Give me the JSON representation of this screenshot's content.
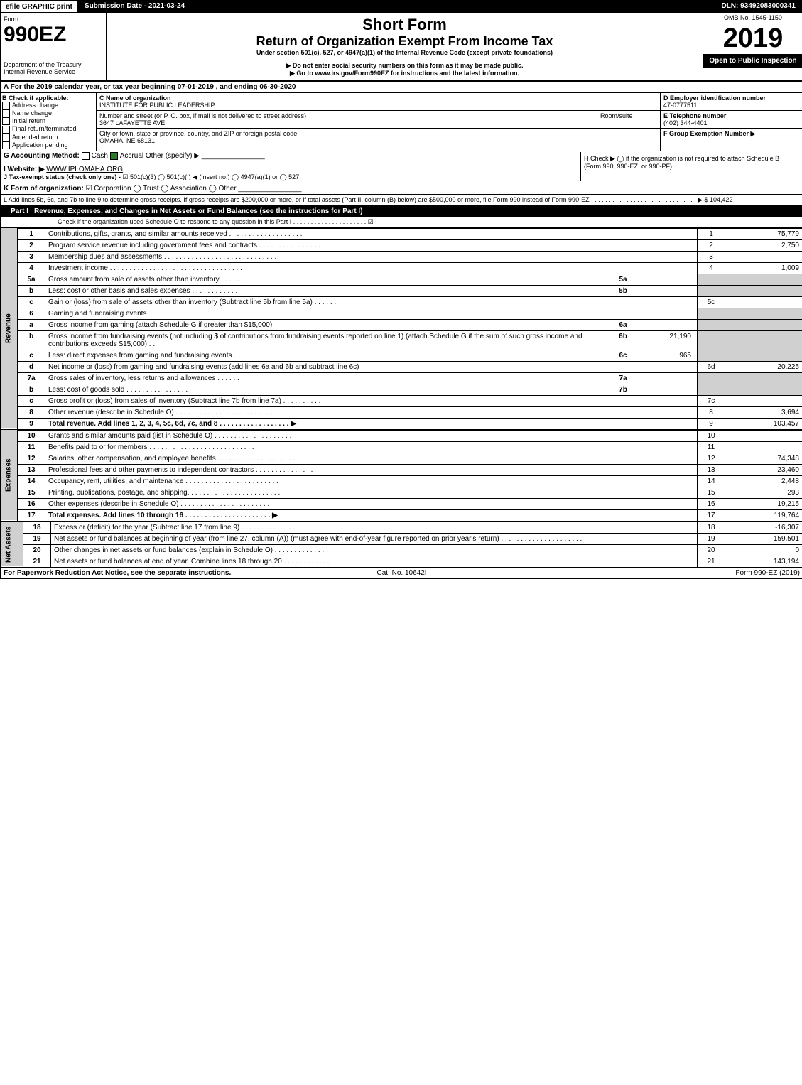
{
  "topbar": {
    "efile": "efile GRAPHIC print",
    "submission": "Submission Date - 2021-03-24",
    "dln": "DLN: 93492083000341"
  },
  "header": {
    "form_word": "Form",
    "form_number": "990EZ",
    "dept": "Department of the Treasury",
    "irs": "Internal Revenue Service",
    "short_form": "Short Form",
    "return_title": "Return of Organization Exempt From Income Tax",
    "under": "Under section 501(c), 527, or 4947(a)(1) of the Internal Revenue Code (except private foundations)",
    "warn": "▶ Do not enter social security numbers on this form as it may be made public.",
    "goto": "▶ Go to www.irs.gov/Form990EZ for instructions and the latest information.",
    "omb": "OMB No. 1545-1150",
    "year": "2019",
    "open": "Open to Public Inspection"
  },
  "sectionA": {
    "a_line": "A For the 2019 calendar year, or tax year beginning 07-01-2019 , and ending 06-30-2020",
    "b_title": "B Check if applicable:",
    "b_opts": [
      "Address change",
      "Name change",
      "Initial return",
      "Final return/terminated",
      "Amended return",
      "Application pending"
    ],
    "c_label": "C Name of organization",
    "c_value": "INSTITUTE FOR PUBLIC LEADERSHIP",
    "addr_label": "Number and street (or P. O. box, if mail is not delivered to street address)",
    "addr_value": "3647 LAFAYETTE AVE",
    "room_label": "Room/suite",
    "city_label": "City or town, state or province, country, and ZIP or foreign postal code",
    "city_value": "OMAHA, NE  68131",
    "d_label": "D Employer identification number",
    "d_value": "47-0777511",
    "e_label": "E Telephone number",
    "e_value": "(402) 344-4401",
    "f_label": "F Group Exemption Number ▶"
  },
  "sectionG": {
    "g_label": "G Accounting Method:",
    "g_cash": "Cash",
    "g_accrual": "Accrual",
    "g_other": "Other (specify) ▶",
    "i_label": "I Website: ▶",
    "i_value": "WWW.IPLOMAHA.ORG",
    "j_label": "J Tax-exempt status (check only one) -",
    "j_opts": "☑ 501(c)(3)  ◯ 501(c)( ) ◀ (insert no.)  ◯ 4947(a)(1) or  ◯ 527",
    "h_label": "H  Check ▶ ◯ if the organization is not required to attach Schedule B (Form 990, 990-EZ, or 990-PF).",
    "k_label": "K Form of organization:",
    "k_opts": "☑ Corporation  ◯ Trust  ◯ Association  ◯ Other",
    "l_label": "L Add lines 5b, 6c, and 7b to line 9 to determine gross receipts. If gross receipts are $200,000 or more, or if total assets (Part II, column (B) below) are $500,000 or more, file Form 990 instead of Form 990-EZ . . . . . . . . . . . . . . . . . . . . . . . . . . . . . . ▶ $ 104,422"
  },
  "part1": {
    "label": "Part I",
    "title": "Revenue, Expenses, and Changes in Net Assets or Fund Balances (see the instructions for Part I)",
    "check_line": "Check if the organization used Schedule O to respond to any question in this Part I . . . . . . . . . . . . . . . . . . . . . ☑",
    "side_revenue": "Revenue",
    "side_expenses": "Expenses",
    "side_netassets": "Net Assets",
    "rows": [
      {
        "n": "1",
        "d": "Contributions, gifts, grants, and similar amounts received . . . . . . . . . . . . . . . . . . . .",
        "rn": "1",
        "a": "75,779"
      },
      {
        "n": "2",
        "d": "Program service revenue including government fees and contracts . . . . . . . . . . . . . . . .",
        "rn": "2",
        "a": "2,750"
      },
      {
        "n": "3",
        "d": "Membership dues and assessments . . . . . . . . . . . . . . . . . . . . . . . . . . . . .",
        "rn": "3",
        "a": ""
      },
      {
        "n": "4",
        "d": "Investment income . . . . . . . . . . . . . . . . . . . . . . . . . . . . . . . . . .",
        "rn": "4",
        "a": "1,009"
      },
      {
        "n": "5a",
        "d": "Gross amount from sale of assets other than inventory . . . . . . .",
        "in": "5a",
        "ia": "",
        "grey": true
      },
      {
        "n": "b",
        "d": "Less: cost or other basis and sales expenses . . . . . . . . . . . .",
        "in": "5b",
        "ia": "",
        "grey": true
      },
      {
        "n": "c",
        "d": "Gain or (loss) from sale of assets other than inventory (Subtract line 5b from line 5a) . . . . . .",
        "rn": "5c",
        "a": ""
      },
      {
        "n": "6",
        "d": "Gaming and fundraising events",
        "grey": true,
        "noamt": true
      },
      {
        "n": "a",
        "d": "Gross income from gaming (attach Schedule G if greater than $15,000)",
        "in": "6a",
        "ia": "",
        "grey": true
      },
      {
        "n": "b",
        "d": "Gross income from fundraising events (not including $                     of contributions from fundraising events reported on line 1) (attach Schedule G if the sum of such gross income and contributions exceeds $15,000)   . .",
        "in": "6b",
        "ia": "21,190",
        "grey": true
      },
      {
        "n": "c",
        "d": "Less: direct expenses from gaming and fundraising events     . .",
        "in": "6c",
        "ia": "965",
        "grey": true
      },
      {
        "n": "d",
        "d": "Net income or (loss) from gaming and fundraising events (add lines 6a and 6b and subtract line 6c)",
        "rn": "6d",
        "a": "20,225"
      },
      {
        "n": "7a",
        "d": "Gross sales of inventory, less returns and allowances . . . . . .",
        "in": "7a",
        "ia": "",
        "grey": true
      },
      {
        "n": "b",
        "d": "Less: cost of goods sold           . . . . . . . . . . . . . . . .",
        "in": "7b",
        "ia": "",
        "grey": true
      },
      {
        "n": "c",
        "d": "Gross profit or (loss) from sales of inventory (Subtract line 7b from line 7a) . . . . . . . . . .",
        "rn": "7c",
        "a": ""
      },
      {
        "n": "8",
        "d": "Other revenue (describe in Schedule O) . . . . . . . . . . . . . . . . . . . . . . . . . .",
        "rn": "8",
        "a": "3,694"
      },
      {
        "n": "9",
        "d": "Total revenue. Add lines 1, 2, 3, 4, 5c, 6d, 7c, and 8  . . . . . . . . . . . . . . . . . .   ▶",
        "rn": "9",
        "a": "103,457",
        "bold": true
      }
    ],
    "exp_rows": [
      {
        "n": "10",
        "d": "Grants and similar amounts paid (list in Schedule O) . . . . . . . . . . . . . . . . . . . .",
        "rn": "10",
        "a": ""
      },
      {
        "n": "11",
        "d": "Benefits paid to or for members    . . . . . . . . . . . . . . . . . . . . . . . . . . .",
        "rn": "11",
        "a": ""
      },
      {
        "n": "12",
        "d": "Salaries, other compensation, and employee benefits . . . . . . . . . . . . . . . . . . . .",
        "rn": "12",
        "a": "74,348"
      },
      {
        "n": "13",
        "d": "Professional fees and other payments to independent contractors . . . . . . . . . . . . . . .",
        "rn": "13",
        "a": "23,460"
      },
      {
        "n": "14",
        "d": "Occupancy, rent, utilities, and maintenance . . . . . . . . . . . . . . . . . . . . . . . .",
        "rn": "14",
        "a": "2,448"
      },
      {
        "n": "15",
        "d": "Printing, publications, postage, and shipping. . . . . . . . . . . . . . . . . . . . . . . .",
        "rn": "15",
        "a": "293"
      },
      {
        "n": "16",
        "d": "Other expenses (describe in Schedule O)     . . . . . . . . . . . . . . . . . . . . . . .",
        "rn": "16",
        "a": "19,215"
      },
      {
        "n": "17",
        "d": "Total expenses. Add lines 10 through 16     . . . . . . . . . . . . . . . . . . . . . .  ▶",
        "rn": "17",
        "a": "119,764",
        "bold": true
      }
    ],
    "na_rows": [
      {
        "n": "18",
        "d": "Excess or (deficit) for the year (Subtract line 17 from line 9)        . . . . . . . . . . . . . .",
        "rn": "18",
        "a": "-16,307"
      },
      {
        "n": "19",
        "d": "Net assets or fund balances at beginning of year (from line 27, column (A)) (must agree with end-of-year figure reported on prior year's return) . . . . . . . . . . . . . . . . . . . . .",
        "rn": "19",
        "a": "159,501"
      },
      {
        "n": "20",
        "d": "Other changes in net assets or fund balances (explain in Schedule O) . . . . . . . . . . . . .",
        "rn": "20",
        "a": "0"
      },
      {
        "n": "21",
        "d": "Net assets or fund balances at end of year. Combine lines 18 through 20 . . . . . . . . . . . .",
        "rn": "21",
        "a": "143,194"
      }
    ]
  },
  "footer": {
    "left": "For Paperwork Reduction Act Notice, see the separate instructions.",
    "center": "Cat. No. 10642I",
    "right": "Form 990-EZ (2019)"
  },
  "style": {
    "accent": "#000000",
    "checkbox_on": "#2a7a2a",
    "grey": "#d0d0d0"
  }
}
